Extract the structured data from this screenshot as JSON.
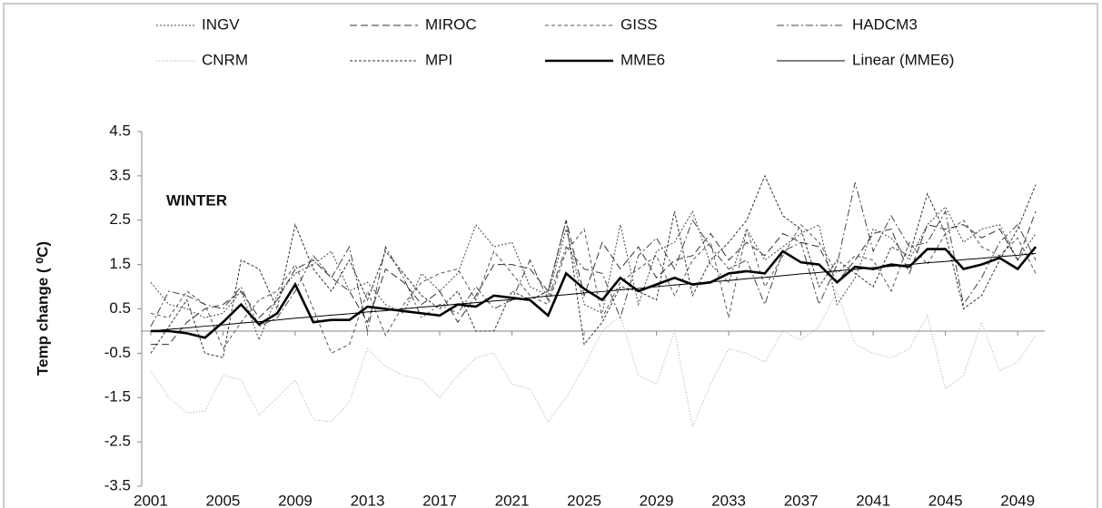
{
  "chart_data": {
    "type": "line",
    "annotation": "WINTER",
    "y_label": "Temp change ( ⁰C)",
    "legend": "top",
    "x": [
      2001,
      2002,
      2003,
      2004,
      2005,
      2006,
      2007,
      2008,
      2009,
      2010,
      2011,
      2012,
      2013,
      2014,
      2015,
      2016,
      2017,
      2018,
      2019,
      2020,
      2021,
      2022,
      2023,
      2024,
      2025,
      2026,
      2027,
      2028,
      2029,
      2030,
      2031,
      2032,
      2033,
      2034,
      2035,
      2036,
      2037,
      2038,
      2039,
      2040,
      2041,
      2042,
      2043,
      2044,
      2045,
      2046,
      2047,
      2048,
      2049,
      2050
    ],
    "xlim": [
      2000.5,
      2050.5
    ],
    "xticks": [
      2001,
      2005,
      2009,
      2013,
      2017,
      2021,
      2025,
      2029,
      2033,
      2037,
      2041,
      2045,
      2049
    ],
    "ylim": [
      -3.5,
      4.5
    ],
    "yticks": [
      -3.5,
      -2.5,
      -1.5,
      -0.5,
      0.5,
      1.5,
      2.5,
      3.5,
      4.5
    ],
    "series": [
      {
        "name": "INGV",
        "color": "#444444",
        "dash": "2,2",
        "width": 1,
        "values": [
          1.1,
          0.6,
          0.5,
          0.3,
          0.4,
          0.9,
          -0.2,
          0.8,
          1.3,
          1.5,
          1.8,
          0.9,
          1.1,
          0.6,
          0.4,
          1.3,
          0.9,
          1.3,
          2.4,
          1.9,
          2.0,
          1.0,
          0.8,
          2.3,
          0.6,
          0.4,
          2.4,
          0.6,
          1.8,
          2.0,
          2.7,
          1.5,
          1.1,
          2.3,
          1.6,
          1.9,
          2.2,
          2.4,
          0.6,
          1.2,
          2.3,
          2.1,
          1.6,
          2.4,
          2.8,
          2.0,
          2.3,
          2.4,
          1.6,
          2.2
        ]
      },
      {
        "name": "MIROC",
        "color": "#333333",
        "dash": "8,4",
        "width": 1,
        "values": [
          -0.3,
          -0.3,
          0.2,
          0.5,
          0.6,
          0.9,
          0.3,
          0.7,
          1.4,
          1.6,
          1.2,
          0.9,
          0.2,
          1.4,
          1.1,
          0.6,
          0.9,
          0.2,
          0.8,
          1.5,
          1.5,
          1.4,
          0.9,
          2.5,
          0.8,
          2.0,
          1.4,
          1.9,
          1.2,
          1.6,
          1.7,
          2.2,
          1.6,
          2.0,
          1.7,
          2.2,
          2.0,
          1.9,
          1.1,
          1.6,
          2.2,
          2.3,
          1.3,
          2.4,
          2.3,
          2.4,
          2.1,
          2.3,
          1.6,
          2.7
        ]
      },
      {
        "name": "GISS",
        "color": "#555555",
        "dash": "4,3",
        "width": 1,
        "values": [
          0.4,
          0.3,
          0.9,
          0.6,
          -0.4,
          0.2,
          0.7,
          0.9,
          1.5,
          0.5,
          -0.5,
          -0.3,
          0.9,
          -0.1,
          0.6,
          1.1,
          1.3,
          1.4,
          0.7,
          1.8,
          1.3,
          0.8,
          0.6,
          1.8,
          2.3,
          0.3,
          1.1,
          1.4,
          1.7,
          0.8,
          1.6,
          2.0,
          0.3,
          2.3,
          1.0,
          1.7,
          2.4,
          2.0,
          1.3,
          1.7,
          1.6,
          0.9,
          2.0,
          1.5,
          2.2,
          2.5,
          1.9,
          1.7,
          2.1,
          1.3
        ]
      },
      {
        "name": "HADCM3",
        "color": "#444444",
        "dash": "8,3,2,3",
        "width": 1,
        "values": [
          0.1,
          0.9,
          0.8,
          0.6,
          0.5,
          1.0,
          0.1,
          0.3,
          0.9,
          1.7,
          1.2,
          1.9,
          0.0,
          1.9,
          1.2,
          0.3,
          0.6,
          0.4,
          1.0,
          0.5,
          0.7,
          1.6,
          0.7,
          1.9,
          1.4,
          1.3,
          0.3,
          1.7,
          2.1,
          1.4,
          2.5,
          1.9,
          1.4,
          1.6,
          0.6,
          1.8,
          2.0,
          0.6,
          1.5,
          3.35,
          1.8,
          2.6,
          1.9,
          2.0,
          2.7,
          0.6,
          1.2,
          2.0,
          2.4,
          1.6
        ]
      },
      {
        "name": "CNRM",
        "color": "#aaaaaa",
        "dash": "1,2",
        "width": 1,
        "values": [
          -0.9,
          -1.5,
          -1.85,
          -1.8,
          -1.0,
          -1.1,
          -1.9,
          -1.5,
          -1.1,
          -2.0,
          -2.05,
          -1.6,
          -0.4,
          -0.8,
          -1.0,
          -1.1,
          -1.5,
          -1.0,
          -0.6,
          -0.5,
          -1.2,
          -1.3,
          -2.05,
          -1.5,
          -0.8,
          0.0,
          0.35,
          -1.0,
          -1.2,
          0.0,
          -2.15,
          -1.2,
          -0.4,
          -0.5,
          -0.7,
          0.0,
          -0.2,
          0.1,
          0.9,
          -0.3,
          -0.5,
          -0.6,
          -0.4,
          0.35,
          -1.3,
          -1.0,
          0.2,
          -0.9,
          -0.7,
          -0.1
        ]
      },
      {
        "name": "MPI",
        "color": "#333333",
        "dash": "3,2",
        "width": 1,
        "values": [
          -0.5,
          0.1,
          0.7,
          -0.5,
          -0.6,
          1.6,
          1.4,
          0.5,
          2.4,
          1.4,
          0.9,
          1.6,
          0.7,
          1.8,
          1.3,
          0.8,
          0.5,
          0.9,
          0.0,
          0.0,
          0.9,
          0.7,
          0.9,
          2.5,
          -0.3,
          0.2,
          1.0,
          0.9,
          0.7,
          2.7,
          0.8,
          1.6,
          2.0,
          2.5,
          3.5,
          2.6,
          2.3,
          1.0,
          1.6,
          1.3,
          1.0,
          1.9,
          1.7,
          3.1,
          2.2,
          0.5,
          0.8,
          1.6,
          2.3,
          3.3
        ]
      },
      {
        "name": "MME6",
        "color": "#000000",
        "dash": "none",
        "width": 2.6,
        "values": [
          0.0,
          0.0,
          -0.05,
          -0.15,
          0.2,
          0.6,
          0.15,
          0.4,
          1.05,
          0.2,
          0.25,
          0.25,
          0.55,
          0.5,
          0.45,
          0.4,
          0.35,
          0.6,
          0.55,
          0.8,
          0.75,
          0.7,
          0.35,
          1.3,
          0.95,
          0.7,
          1.2,
          0.9,
          1.05,
          1.2,
          1.05,
          1.1,
          1.3,
          1.35,
          1.3,
          1.8,
          1.55,
          1.5,
          1.1,
          1.45,
          1.4,
          1.5,
          1.45,
          1.85,
          1.85,
          1.4,
          1.5,
          1.65,
          1.4,
          1.9
        ]
      },
      {
        "name": "Linear (MME6)",
        "color": "#000000",
        "dash": "none",
        "width": 1,
        "values": [
          0,
          0.04,
          0.07,
          0.11,
          0.14,
          0.18,
          0.21,
          0.25,
          0.29,
          0.32,
          0.36,
          0.39,
          0.43,
          0.46,
          0.5,
          0.54,
          0.57,
          0.61,
          0.64,
          0.68,
          0.71,
          0.75,
          0.79,
          0.82,
          0.86,
          0.89,
          0.93,
          0.96,
          1,
          1.04,
          1.07,
          1.11,
          1.14,
          1.18,
          1.21,
          1.25,
          1.29,
          1.32,
          1.36,
          1.39,
          1.43,
          1.46,
          1.5,
          1.54,
          1.57,
          1.61,
          1.64,
          1.68,
          1.71,
          1.75
        ]
      }
    ]
  }
}
